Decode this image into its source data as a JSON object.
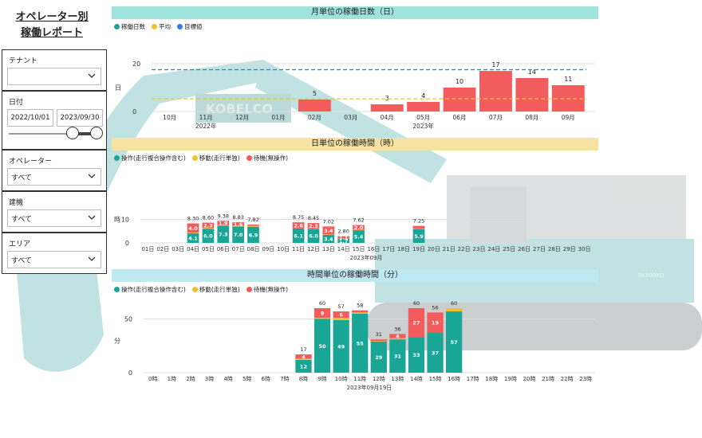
{
  "page": {
    "title_line1": "オペレーター別",
    "title_line2": "稼働レポート"
  },
  "filters": {
    "tenant": {
      "label": "テナント",
      "value": ""
    },
    "date": {
      "label": "日付",
      "start": "2022/10/01",
      "end": "2023/09/30"
    },
    "operator": {
      "label": "オペレーター",
      "value": "すべて"
    },
    "machine": {
      "label": "建機",
      "value": "すべて"
    },
    "area": {
      "label": "エリア",
      "value": "すべて"
    }
  },
  "colors": {
    "teal": "#1aa697",
    "red": "#f25c5c",
    "yellow": "#f2c12e",
    "blue": "#2f7fe0",
    "banner_teal": "#9fe3dd",
    "banner_yellow": "#f6e3a1",
    "banner_cyan": "#bfe9f2"
  },
  "background_image": {
    "brand_text": "KOBELCO",
    "model_text": "SK500XD"
  },
  "chart_data": [
    {
      "type": "bar",
      "title": "月単位の稼働日数（日）",
      "legend": [
        "稼働日数",
        "平均",
        "目標値"
      ],
      "ylabel": "日",
      "ylim": [
        0,
        20
      ],
      "yticks": [
        0,
        20
      ],
      "categories": [
        "10月",
        "11月",
        "12月",
        "01月",
        "02月",
        "03月",
        "04月",
        "05月",
        "06月",
        "07月",
        "08月",
        "09月"
      ],
      "year_labels": [
        {
          "at": 1,
          "text": "2022年"
        },
        {
          "at": 7,
          "text": "2023年"
        }
      ],
      "values": [
        0,
        0,
        0,
        0,
        5,
        0,
        3,
        4,
        10,
        17,
        14,
        11
      ],
      "value_labels": [
        "",
        "",
        "",
        "",
        "5",
        "",
        "3",
        "4",
        "10",
        "17",
        "14",
        "11"
      ],
      "average": 5.3,
      "target": 17.5
    },
    {
      "type": "bar",
      "title": "日単位の稼働時間（時）",
      "legend": [
        "操作(走行複合操作含む)",
        "移動(走行単独)",
        "待機(無操作)"
      ],
      "ylabel": "時",
      "ylim": [
        0,
        20
      ],
      "yticks": [
        0,
        10
      ],
      "xlabel": "2023年09月",
      "categories": [
        "01日",
        "02日",
        "03日",
        "04日",
        "05日",
        "06日",
        "07日",
        "08日",
        "09日",
        "10日",
        "11日",
        "12日",
        "13日",
        "14日",
        "15日",
        "16日",
        "17日",
        "18日",
        "19日",
        "20日",
        "21日",
        "22日",
        "23日",
        "24日",
        "25日",
        "26日",
        "27日",
        "28日",
        "29日",
        "30日"
      ],
      "series": [
        {
          "name": "操作(走行複合操作含む)",
          "values": [
            0,
            0,
            0,
            4.1,
            6.0,
            7.3,
            7.0,
            6.9,
            0,
            0,
            6.1,
            6.0,
            3.4,
            1.7,
            5.4,
            0,
            0,
            0,
            5.9,
            0,
            0,
            0,
            0,
            0,
            0,
            0,
            0,
            0,
            0,
            0
          ],
          "labels": [
            "",
            "",
            "",
            "4.1",
            "6.0",
            "7.3",
            "7.0",
            "6.9",
            "",
            "",
            "6.1",
            "6.0",
            "3.4",
            "1.7",
            "5.4",
            "",
            "",
            "",
            "5.9",
            "",
            "",
            "",
            "",
            "",
            "",
            "",
            "",
            "",
            "",
            ""
          ]
        },
        {
          "name": "移動(走行単独)",
          "values": [
            0,
            0,
            0,
            0.2,
            0.3,
            0.2,
            0.2,
            0.4,
            0,
            0,
            0.05,
            0.15,
            0.2,
            0.05,
            0.2,
            0,
            0,
            0,
            0.15,
            0,
            0,
            0,
            0,
            0,
            0,
            0,
            0,
            0,
            0,
            0
          ],
          "labels": [
            "",
            "",
            "",
            "",
            "",
            "",
            "",
            "",
            "",
            "",
            "",
            "",
            "",
            "",
            "",
            "",
            "",
            "",
            "",
            "",
            "",
            "",
            "",
            "",
            "",
            "",
            "",
            "",
            "",
            ""
          ]
        },
        {
          "name": "待機(無操作)",
          "values": [
            0,
            0,
            0,
            4.0,
            2.3,
            1.9,
            1.6,
            0.5,
            0,
            0,
            2.6,
            2.3,
            3.4,
            1.1,
            2.0,
            0,
            0,
            0,
            1.2,
            0,
            0,
            0,
            0,
            0,
            0,
            0,
            0,
            0,
            0,
            0
          ],
          "labels": [
            "",
            "",
            "",
            "4.0",
            "2.3",
            "1.9",
            "1.6",
            "",
            "",
            "",
            "2.6",
            "2.3",
            "3.4",
            "1.1",
            "2.0",
            "",
            "",
            "",
            "",
            "",
            "",
            "",
            "",
            "",
            "",
            "",
            "",
            "",
            "",
            ""
          ]
        }
      ],
      "total_labels": [
        "",
        "",
        "",
        "8.30",
        "8.60",
        "9.38",
        "8.83",
        "7.82",
        "",
        "",
        "8.75",
        "8.45",
        "7.02",
        "2.80",
        "7.62",
        "",
        "",
        "",
        "7.25",
        "",
        "",
        "",
        "",
        "",
        "",
        "",
        "",
        "",
        "",
        ""
      ]
    },
    {
      "type": "bar",
      "title": "時間単位の稼働時間（分）",
      "legend": [
        "操作(走行複合操作含む)",
        "移動(走行単独)",
        "待機(無操作)"
      ],
      "ylabel": "分",
      "ylim": [
        0,
        60
      ],
      "yticks": [
        0,
        50
      ],
      "xlabel": "2023年09月19日",
      "categories": [
        "0時",
        "1時",
        "2時",
        "3時",
        "4時",
        "5時",
        "6時",
        "7時",
        "8時",
        "9時",
        "10時",
        "11時",
        "12時",
        "13時",
        "14時",
        "15時",
        "16時",
        "17時",
        "18時",
        "19時",
        "20時",
        "21時",
        "22時",
        "23時"
      ],
      "series": [
        {
          "name": "操作(走行複合操作含む)",
          "values": [
            0,
            0,
            0,
            0,
            0,
            0,
            0,
            0,
            12,
            50,
            49,
            55,
            29,
            31,
            33,
            37,
            57,
            0,
            0,
            0,
            0,
            0,
            0,
            0
          ],
          "labels": [
            "",
            "",
            "",
            "",
            "",
            "",
            "",
            "",
            "12",
            "50",
            "49",
            "55",
            "29",
            "31",
            "33",
            "37",
            "57",
            "",
            "",
            "",
            "",
            "",
            "",
            ""
          ]
        },
        {
          "name": "移動(走行単独)",
          "values": [
            0,
            0,
            0,
            0,
            0,
            0,
            0,
            0,
            1,
            1,
            2,
            1,
            0.5,
            1,
            0,
            0,
            3,
            0,
            0,
            0,
            0,
            0,
            0,
            0
          ],
          "labels": [
            "",
            "",
            "",
            "",
            "",
            "",
            "",
            "",
            "",
            "",
            "",
            "",
            "",
            "",
            "",
            "",
            "",
            "",
            "",
            "",
            "",
            "",
            "",
            ""
          ]
        },
        {
          "name": "待機(無操作)",
          "values": [
            0,
            0,
            0,
            0,
            0,
            0,
            0,
            0,
            4,
            9,
            6,
            2,
            1.5,
            4,
            27,
            19,
            0,
            0,
            0,
            0,
            0,
            0,
            0,
            0
          ],
          "labels": [
            "",
            "",
            "",
            "",
            "",
            "",
            "",
            "",
            "4",
            "9",
            "6",
            "",
            "",
            "4",
            "27",
            "19",
            "",
            "",
            "",
            "",
            "",
            "",
            "",
            ""
          ]
        }
      ],
      "total_labels": [
        "",
        "",
        "",
        "",
        "",
        "",
        "",
        "",
        "17",
        "60",
        "57",
        "58",
        "31",
        "36",
        "60",
        "56",
        "60",
        "",
        "",
        "",
        "",
        "",
        "",
        ""
      ]
    }
  ]
}
